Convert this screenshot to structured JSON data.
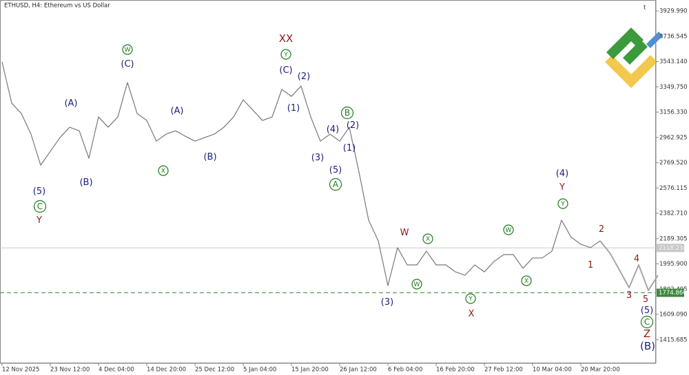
{
  "chart_data": {
    "type": "line",
    "title": "ETHUSD, H4:  Ethereum vs US Dollar",
    "categories": [
      "12 Nov 2025",
      null,
      null,
      null,
      null,
      "23 Nov 12:00",
      null,
      null,
      null,
      null,
      "4 Dec 04:00",
      null,
      null,
      null,
      null,
      "14 Dec 20:00",
      null,
      null,
      null,
      null,
      "25 Dec 12:00",
      null,
      null,
      null,
      null,
      "5 Jan 04:00",
      null,
      null,
      null,
      null,
      "15 Jan 20:00",
      null,
      null,
      null,
      null,
      "26 Jan 12:00",
      null,
      null,
      null,
      null,
      "6 Feb 04:00",
      null,
      null,
      null,
      null,
      "16 Feb 20:00",
      null,
      null,
      null,
      null,
      "27 Feb 12:00",
      null,
      null,
      null,
      null,
      "10 Mar 04:00",
      null,
      null,
      null,
      null,
      "20 Mar 20:00",
      null,
      null,
      null,
      null,
      null,
      null,
      null,
      null
    ],
    "series": [
      {
        "color": "#777777",
        "values": [
          3540,
          3225,
          3146,
          2988,
          2751,
          2856,
          2962,
          3041,
          3014,
          2804,
          3120,
          3041,
          3120,
          3383,
          3146,
          3093,
          2935,
          2988,
          3014,
          2972,
          2935,
          2962,
          2988,
          3041,
          3120,
          3251,
          3172,
          3093,
          3120,
          3330,
          3277,
          3356,
          3120,
          2935,
          2988,
          2935,
          3041,
          2699,
          2330,
          2172,
          1830,
          2120,
          1988,
          1988,
          2093,
          1988,
          1988,
          1935,
          1909,
          1988,
          1935,
          2014,
          2067,
          2067,
          1962,
          2041,
          2041,
          2093,
          2330,
          2199,
          2146,
          2120,
          2172,
          null,
          null,
          null,
          null,
          null,
          null
        ]
      },
      {
        "color": "#a6a6a6",
        "values": [
          null,
          null,
          null,
          null,
          null,
          null,
          null,
          null,
          null,
          null,
          null,
          null,
          null,
          null,
          null,
          null,
          null,
          null,
          null,
          null,
          null,
          null,
          null,
          null,
          null,
          null,
          null,
          null,
          null,
          null,
          null,
          null,
          null,
          null,
          null,
          null,
          null,
          null,
          null,
          null,
          null,
          null,
          null,
          null,
          null,
          null,
          null,
          null,
          null,
          null,
          null,
          null,
          null,
          null,
          null,
          null,
          null,
          null,
          null,
          null,
          null,
          null,
          2172,
          2080,
          1950,
          1814,
          1988,
          1793,
          1909
        ]
      }
    ],
    "ylim": [
      1235.5,
      4014.2
    ],
    "yticks": [
      {
        "value": 3929.99,
        "label": "3929.990"
      },
      3736.545,
      {
        "value": 3543.14,
        "label": "3543.140"
      },
      {
        "value": 3349.75,
        "label": "3349.750"
      },
      {
        "value": 3156.33,
        "label": "3156.330"
      },
      2962.925,
      {
        "value": 2769.52,
        "label": "2769.520"
      },
      2576.115,
      {
        "value": 2382.71,
        "label": "2382.710"
      },
      2189.305,
      {
        "value": 1995.9,
        "label": "1995.900"
      },
      1802.495,
      {
        "value": 1609.09,
        "label": "1609.090"
      },
      1415.685
    ],
    "price_lines": [
      {
        "value": 2118.234,
        "color": "#c8c8c8",
        "dashed": false
      },
      {
        "value": {
          "value": 1774.86,
          "label": "1774.860"
        },
        "color": "#3c8a3c",
        "dashed": true
      }
    ],
    "annotations": [
      {
        "text": "(5)",
        "color": "#1a1f7a"
      },
      {
        "text": "C",
        "color": "#1b7a1b",
        "circled": true
      },
      {
        "text": "Y",
        "color": "#8b1a1a"
      },
      {
        "text": "(A)",
        "color": "#1a1f7a"
      },
      {
        "text": "(B)",
        "color": "#1a1f7a"
      },
      {
        "text": "W",
        "color": "#1b7a1b",
        "circled": true
      },
      {
        "text": "(C)",
        "color": "#1a1f7a"
      },
      {
        "text": "(A)",
        "color": "#1a1f7a"
      },
      {
        "text": "X",
        "color": "#1b7a1b",
        "circled": true
      },
      {
        "text": "(B)",
        "color": "#1a1f7a"
      },
      {
        "text": "XX",
        "color": "#8b1a1a"
      },
      {
        "text": "Y",
        "color": "#1b7a1b",
        "circled": true
      },
      {
        "text": "(C)",
        "color": "#1a1f7a"
      },
      {
        "text": "(2)",
        "color": "#1a1f7a"
      },
      {
        "text": "(1)",
        "color": "#1a1f7a"
      },
      {
        "text": "B",
        "color": "#1b7a1b",
        "circled": true
      },
      {
        "text": "(4)",
        "color": "#1a1f7a"
      },
      {
        "text": "(2)",
        "color": "#1a1f7a"
      },
      {
        "text": "(1)",
        "color": "#1a1f7a"
      },
      {
        "text": "(3)",
        "color": "#1a1f7a"
      },
      {
        "text": "(5)",
        "color": "#1a1f7a"
      },
      {
        "text": "A",
        "color": "#1b7a1b",
        "circled": true
      },
      {
        "text": "W",
        "color": "#8b1a1a"
      },
      {
        "text": "X",
        "color": "#1b7a1b",
        "circled": true
      },
      {
        "text": "W",
        "color": "#1b7a1b",
        "circled": true
      },
      {
        "text": "(3)",
        "color": "#1a1f7a"
      },
      {
        "text": "Y",
        "color": "#1b7a1b",
        "circled": true
      },
      {
        "text": "X",
        "color": "#8b1a1a"
      },
      {
        "text": "W",
        "color": "#1b7a1b",
        "circled": true
      },
      {
        "text": "X",
        "color": "#1b7a1b",
        "circled": true
      },
      {
        "text": "(4)",
        "color": "#1a1f7a"
      },
      {
        "text": "Y",
        "color": "#8b1a1a"
      },
      {
        "text": "Y",
        "color": "#1b7a1b",
        "circled": true
      },
      {
        "text": "2",
        "color": "#8b1a1a"
      },
      {
        "text": "1",
        "color": "#8b1a1a"
      },
      {
        "text": "4",
        "color": "#8b1a1a"
      },
      {
        "text": "3",
        "color": "#8b1a1a"
      },
      {
        "text": "5",
        "color": "#8b1a1a"
      },
      {
        "text": "(5)",
        "color": "#1a1f7a"
      },
      {
        "text": "C",
        "color": "#1b7a1b",
        "circled": true
      },
      {
        "text": "Z",
        "color": "#8b1a1a"
      },
      {
        "text": "(B)",
        "color": "#1a1f7a"
      }
    ]
  }
}
